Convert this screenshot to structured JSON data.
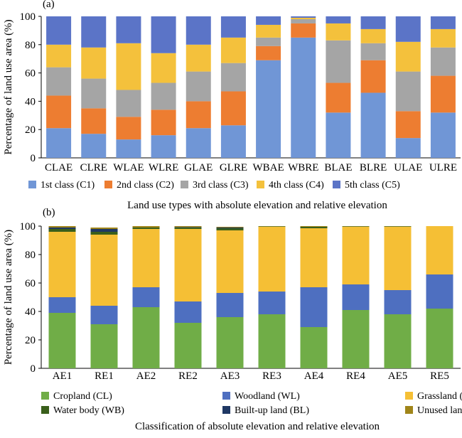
{
  "chart_data": [
    {
      "panel_label": "(a)",
      "type": "bar",
      "stacked": true,
      "xlabel": "Land use types with absolute elevation and relative elevation",
      "ylabel": "Percentage of land use area (%)",
      "ylim": [
        0,
        100
      ],
      "yticks": [
        0,
        20,
        40,
        60,
        80,
        100
      ],
      "grid": false,
      "legend_position": "bottom",
      "categories": [
        "CLAE",
        "CLRE",
        "WLAE",
        "WLRE",
        "GLAE",
        "GLRE",
        "WBAE",
        "WBRE",
        "BLAE",
        "BLRE",
        "ULAE",
        "ULRE"
      ],
      "series": [
        {
          "name": "1st class (C1)",
          "color": "#7096d6",
          "values": [
            21,
            17,
            13,
            16,
            21,
            23,
            69,
            85,
            32,
            46,
            14,
            32
          ]
        },
        {
          "name": "2nd class (C2)",
          "color": "#ed7d31",
          "values": [
            23,
            18,
            16,
            18,
            19,
            24,
            10,
            10,
            21,
            23,
            19,
            26
          ]
        },
        {
          "name": "3rd class (C3)",
          "color": "#a5a5a5",
          "values": [
            20,
            21,
            19,
            19,
            21,
            20,
            6,
            3,
            30,
            12,
            28,
            20
          ]
        },
        {
          "name": "4th class (C4)",
          "color": "#f4c13c",
          "values": [
            16,
            22,
            33,
            21,
            19,
            18,
            9,
            1,
            12,
            10,
            21,
            13
          ]
        },
        {
          "name": "5th class (C5)",
          "color": "#5b74c7",
          "values": [
            20,
            22,
            19,
            26,
            20,
            15,
            6,
            1,
            5,
            9,
            18,
            9
          ]
        }
      ]
    },
    {
      "panel_label": "(b)",
      "type": "bar",
      "stacked": true,
      "xlabel": "Classification of absolute elevation and relative elevation",
      "ylabel": "Percentage of land use area (%)",
      "ylim": [
        0,
        100
      ],
      "yticks": [
        0,
        20,
        40,
        60,
        80,
        100
      ],
      "grid": false,
      "legend_position": "bottom",
      "categories": [
        "AE1",
        "RE1",
        "AE2",
        "RE2",
        "AE3",
        "RE3",
        "AE4",
        "RE4",
        "AE5",
        "RE5"
      ],
      "series": [
        {
          "name": "Cropland (CL)",
          "color": "#70ad47",
          "values": [
            39,
            31,
            43,
            32,
            36,
            38,
            29,
            41,
            38,
            42
          ]
        },
        {
          "name": "Woodland (WL)",
          "color": "#4e6fc0",
          "values": [
            11,
            13,
            14,
            15,
            17,
            16,
            28,
            18,
            17,
            24
          ]
        },
        {
          "name": "Grassland (GL)",
          "color": "#f5bf35",
          "values": [
            46,
            50,
            41,
            51,
            44,
            45.5,
            41.5,
            40.5,
            44.5,
            34
          ]
        },
        {
          "name": "Water body (WB)",
          "color": "#3a5f1b",
          "values": [
            2,
            2,
            1,
            1,
            1.5,
            0.3,
            1,
            0.3,
            0.3,
            0
          ]
        },
        {
          "name": "Built-up land (BL)",
          "color": "#1f3864",
          "values": [
            1,
            2,
            0,
            0.3,
            0.5,
            0,
            0,
            0,
            0,
            0
          ]
        },
        {
          "name": "Unused land (UL)",
          "color": "#a08519",
          "values": [
            1,
            1,
            1,
            0.7,
            0.5,
            0.2,
            0.5,
            0.2,
            0.2,
            0
          ]
        }
      ]
    }
  ]
}
